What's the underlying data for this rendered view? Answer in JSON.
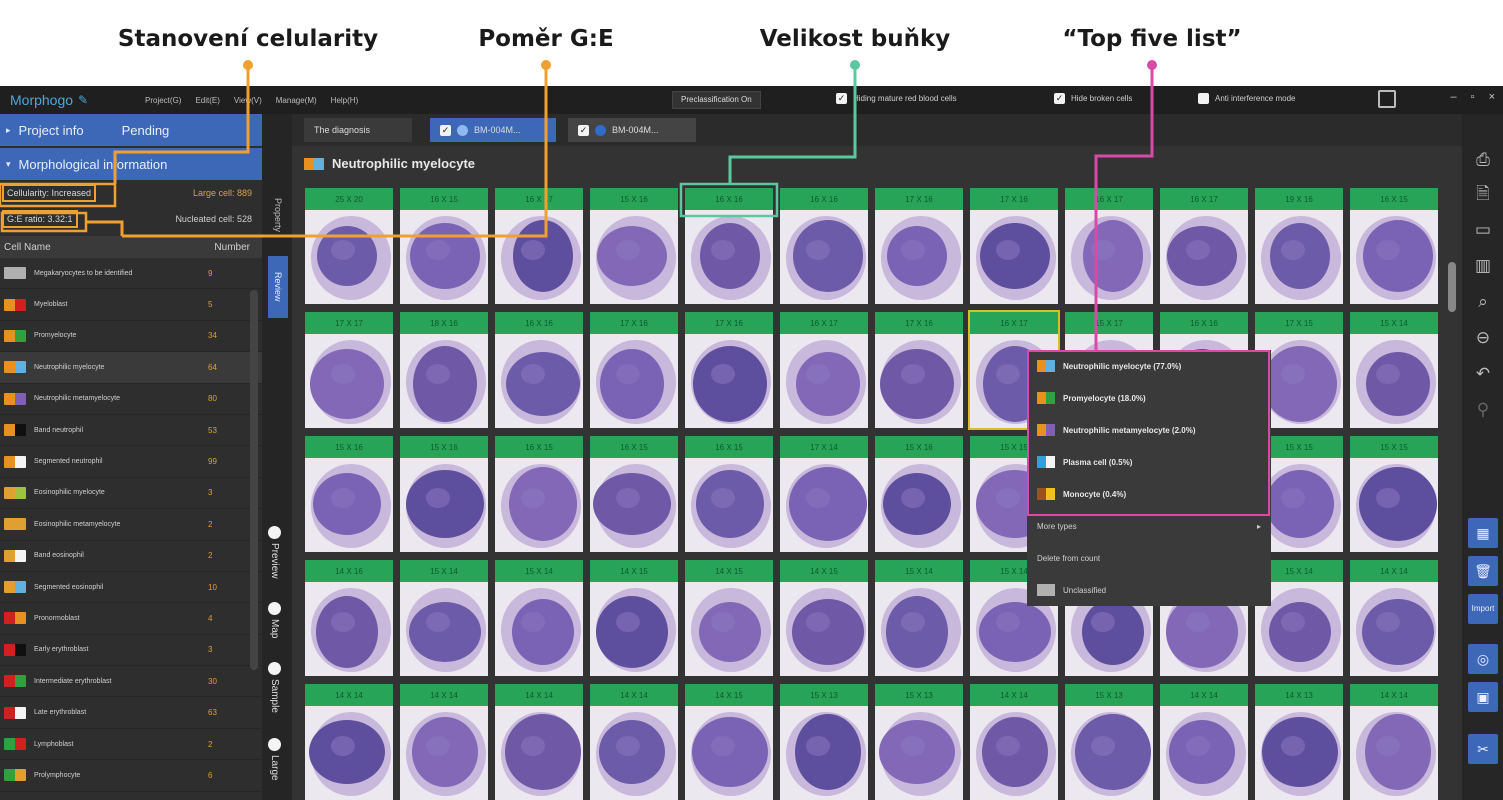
{
  "callouts": [
    {
      "label": "Stanovení celularity",
      "color": "#f0a030"
    },
    {
      "label": "Poměr G:E",
      "color": "#f0a030"
    },
    {
      "label": "Velikost buňky",
      "color": "#5cc8a0"
    },
    {
      "label": "“Top five list”",
      "color": "#d84aa8"
    }
  ],
  "app": {
    "name": "Morphogo",
    "menu": [
      "Project(G)",
      "Edit(E)",
      "View(V)",
      "Manage(M)",
      "Help(H)"
    ],
    "preclassification_button": "Preclassification On",
    "toggles": [
      {
        "label": "Hiding mature red blood cells",
        "checked": true
      },
      {
        "label": "Hide broken cells",
        "checked": true
      },
      {
        "label": "Anti interference mode",
        "checked": false
      }
    ]
  },
  "left_panel": {
    "project_info": "Project info",
    "status": "Pending",
    "morph_info": "Morphological information",
    "cellularity": "Cellularity: Increased",
    "large_cell": "Large cell: 889",
    "ge_ratio": "G:E ratio: 3.32:1",
    "nucleated_cell": "Nucleated cell: 528",
    "col_name": "Cell Name",
    "col_number": "Number",
    "rows": [
      {
        "name": "Megakaryocytes to be identified",
        "count": "9",
        "colors": [
          "#b0b0b0",
          "#b0b0b0"
        ]
      },
      {
        "name": "Myeloblast",
        "count": "5",
        "colors": [
          "#e89020",
          "#d02020"
        ]
      },
      {
        "name": "Promyelocyte",
        "count": "34",
        "colors": [
          "#e89020",
          "#30a040"
        ]
      },
      {
        "name": "Neutrophilic myelocyte",
        "count": "64",
        "colors": [
          "#e89020",
          "#60b0e0"
        ]
      },
      {
        "name": "Neutrophilic metamyelocyte",
        "count": "80",
        "colors": [
          "#e89020",
          "#8060b0"
        ]
      },
      {
        "name": "Band neutrophil",
        "count": "53",
        "colors": [
          "#e89020",
          "#101010"
        ]
      },
      {
        "name": "Segmented neutrophil",
        "count": "99",
        "colors": [
          "#e89020",
          "#f4f4f4"
        ]
      },
      {
        "name": "Eosinophilic myelocyte",
        "count": "3",
        "colors": [
          "#e0a030",
          "#a0c040"
        ]
      },
      {
        "name": "Eosinophilic metamyelocyte",
        "count": "2",
        "colors": [
          "#e0a030",
          "#e0a030"
        ]
      },
      {
        "name": "Band eosinophil",
        "count": "2",
        "colors": [
          "#e0a030",
          "#f4f4f4"
        ]
      },
      {
        "name": "Segmented eosinophil",
        "count": "10",
        "colors": [
          "#e0a030",
          "#60b0e0"
        ]
      },
      {
        "name": "Pronormoblast",
        "count": "4",
        "colors": [
          "#d02020",
          "#e89020"
        ]
      },
      {
        "name": "Early erythroblast",
        "count": "3",
        "colors": [
          "#d02020",
          "#101010"
        ]
      },
      {
        "name": "Intermediate erythroblast",
        "count": "30",
        "colors": [
          "#d02020",
          "#30a040"
        ]
      },
      {
        "name": "Late erythroblast",
        "count": "63",
        "colors": [
          "#d02020",
          "#f4f4f4"
        ]
      },
      {
        "name": "Lymphoblast",
        "count": "2",
        "colors": [
          "#30a040",
          "#d02020"
        ]
      },
      {
        "name": "Prolymphocyte",
        "count": "6",
        "colors": [
          "#30a040",
          "#e0a030"
        ]
      }
    ]
  },
  "vertical_tabs": [
    "Property",
    "Review"
  ],
  "view_options": [
    "Preview",
    "Map",
    "Sample",
    "Large"
  ],
  "tabs": [
    "The diagnosis",
    "BM-004M...",
    "BM-004M..."
  ],
  "grid": {
    "title": "Neutrophilic myelocyte",
    "title_colors": [
      "#e89020",
      "#60b0e0"
    ],
    "rows": [
      [
        "25 X 20",
        "16 X 15",
        "16 X 17",
        "15 X 16",
        "16 X 16",
        "16 X 16",
        "17 X 16",
        "17 X 16",
        "16 X 17",
        "16 X 17",
        "19 X 16",
        "16 X 15"
      ],
      [
        "17 X 17",
        "18 X 16",
        "16 X 16",
        "17 X 16",
        "17 X 16",
        "16 X 17",
        "17 X 16",
        "16 X 17",
        "15 X 17",
        "16 X 16",
        "17 X 15",
        "15 X 14"
      ],
      [
        "15 X 16",
        "15 X 16",
        "16 X 15",
        "16 X 15",
        "16 X 15",
        "17 X 14",
        "15 X 16",
        "15 X 15",
        "15 X 14",
        "15 X 15",
        "15 X 15",
        "15 X 15"
      ],
      [
        "14 X 16",
        "15 X 14",
        "15 X 14",
        "14 X 15",
        "14 X 15",
        "14 X 15",
        "15 X 14",
        "15 X 14",
        "15 X 14",
        "15 X 14",
        "15 X 14",
        "14 X 14"
      ],
      [
        "14 X 14",
        "14 X 14",
        "14 X 14",
        "14 X 14",
        "14 X 15",
        "15 X 13",
        "15 X 13",
        "14 X 14",
        "15 X 13",
        "14 X 14",
        "14 X 13",
        "14 X 14"
      ]
    ]
  },
  "context_menu": {
    "top_five": [
      {
        "label": "Neutrophilic myelocyte (77.0%)",
        "colors": [
          "#e89020",
          "#60b0e0"
        ]
      },
      {
        "label": "Promyelocyte (18.0%)",
        "colors": [
          "#e89020",
          "#30a040"
        ]
      },
      {
        "label": "Neutrophilic metamyelocyte (2.0%)",
        "colors": [
          "#e89020",
          "#8060b0"
        ]
      },
      {
        "label": "Plasma cell (0.5%)",
        "colors": [
          "#30a0e0",
          "#f4f4f4"
        ]
      },
      {
        "label": "Monocyte (0.4%)",
        "colors": [
          "#a05020",
          "#f0c020"
        ]
      }
    ],
    "more_types": "More types",
    "delete": "Delete from count",
    "unclassified": "Unclassified",
    "unclassified_color": "#b0b0b0"
  },
  "right_toolbar": {
    "icons": [
      "printer-icon",
      "report-icon",
      "chat-icon",
      "columns-icon",
      "search-doc-icon",
      "minus-circle-icon",
      "undo-icon",
      "pin-icon"
    ],
    "buttons": [
      "gallery-icon",
      "trash-icon",
      "import-icon",
      "locate-icon",
      "grid-icon",
      "tools-icon"
    ],
    "import_label": "Import"
  }
}
